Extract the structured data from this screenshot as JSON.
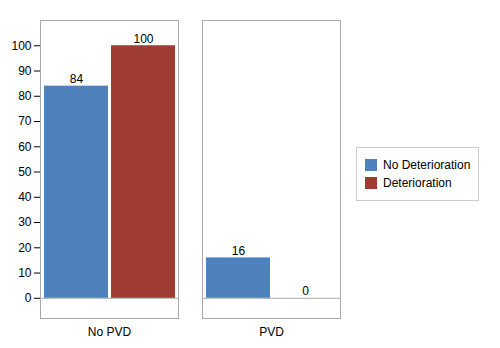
{
  "chart_data": {
    "type": "bar",
    "categories": [
      "No PVD",
      "PVD"
    ],
    "series": [
      {
        "name": "No Deterioration",
        "color": "#4F81BD",
        "values": [
          84,
          16
        ]
      },
      {
        "name": "Deterioration",
        "color": "#9E3B33",
        "values": [
          100,
          0
        ]
      }
    ],
    "ylim": [
      -8,
      110
    ],
    "yticks": [
      0,
      10,
      20,
      30,
      40,
      50,
      60,
      70,
      80,
      90,
      100
    ],
    "grid": false,
    "legend": "right",
    "data_labels": true
  }
}
